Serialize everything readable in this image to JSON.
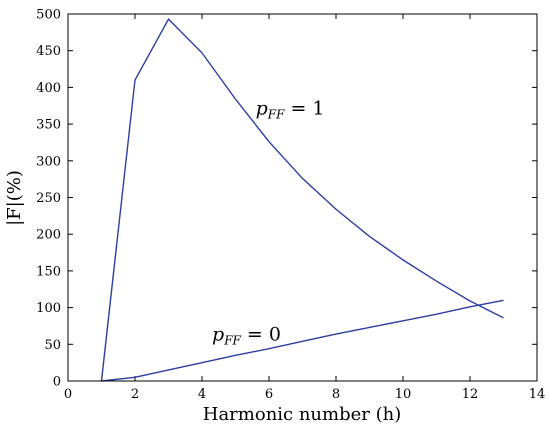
{
  "chart_data": {
    "type": "line",
    "title": "",
    "xlabel": "Harmonic number (h)",
    "ylabel": "|F|(%)",
    "xlim": [
      0,
      14
    ],
    "ylim": [
      0,
      500
    ],
    "xticks": [
      0,
      2,
      4,
      6,
      8,
      10,
      12,
      14
    ],
    "yticks": [
      0,
      50,
      100,
      150,
      200,
      250,
      300,
      350,
      400,
      450,
      500
    ],
    "grid": false,
    "legend": "none",
    "line_color": "#2b3ea0",
    "series": [
      {
        "x": [
          1,
          2,
          3,
          4,
          5,
          6,
          7,
          8,
          9,
          10,
          11,
          12,
          13
        ],
        "values": [
          0,
          410,
          493,
          447,
          384,
          326,
          276,
          234,
          197,
          165,
          136,
          109,
          86
        ]
      },
      {
        "x": [
          1,
          2,
          3,
          4,
          5,
          6,
          7,
          8,
          9,
          10,
          11,
          12,
          13
        ],
        "values": [
          0,
          5,
          15,
          25,
          35,
          44,
          54,
          64,
          73,
          82,
          91,
          101,
          110
        ]
      }
    ],
    "annotations": [
      {
        "base": "p",
        "sub": "FF",
        "rest": " = 1",
        "x": 5.6,
        "y": 363
      },
      {
        "base": "p",
        "sub": "FF",
        "rest": " = 0",
        "x": 4.3,
        "y": 55
      }
    ]
  }
}
